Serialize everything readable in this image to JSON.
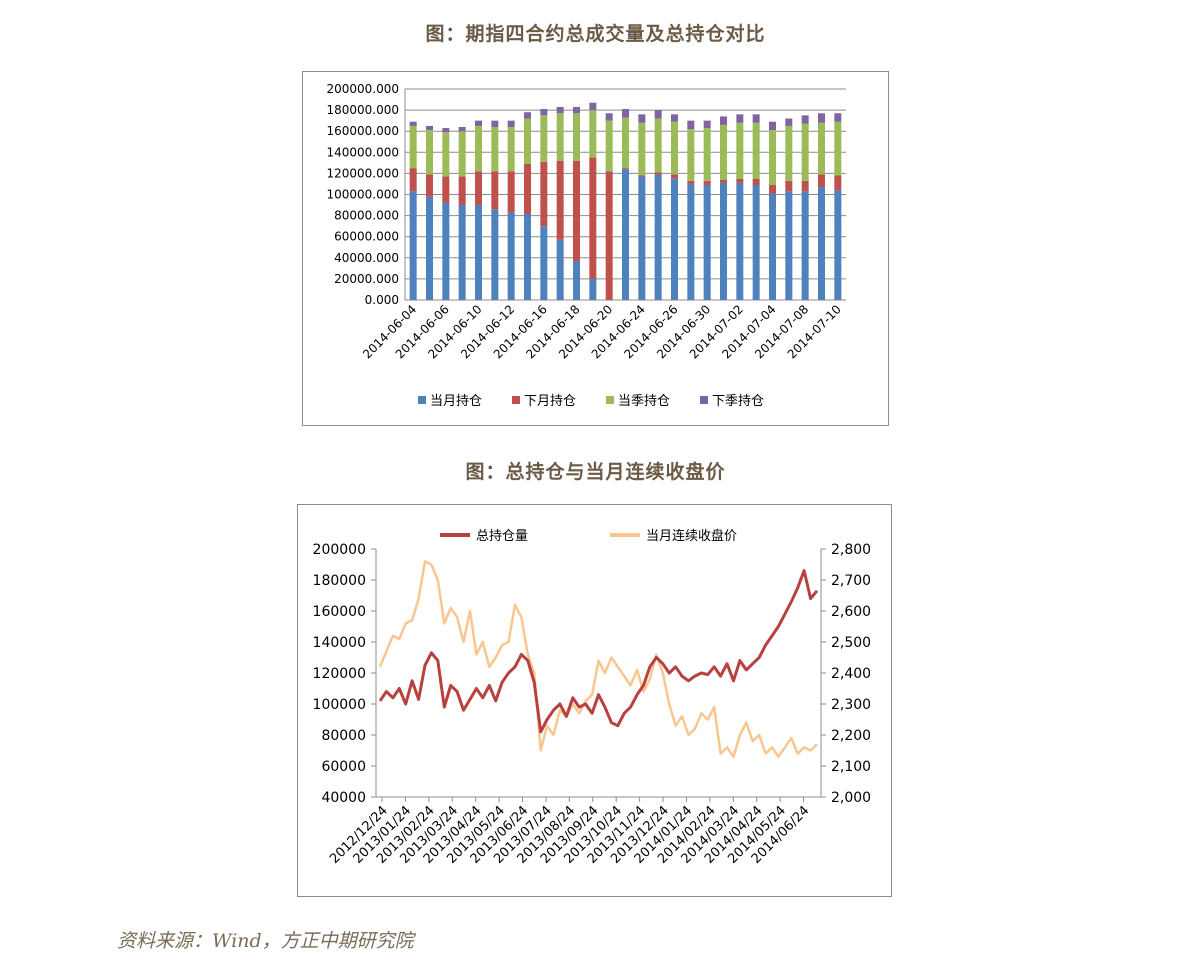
{
  "titles": {
    "chart1": "图：期指四合约总成交量及总持仓对比",
    "chart2": "图：总持仓与当月连续收盘价"
  },
  "source": "资料来源：Wind，方正中期研究院",
  "colors": {
    "blue": "#4f81bd",
    "red": "#c0504d",
    "green": "#9bbb59",
    "purple": "#8064a2",
    "darkred": "#b7413e",
    "peach": "#fac68f"
  },
  "chart_data": [
    {
      "type": "bar",
      "stacked": true,
      "title": "图：期指四合约总成交量及总持仓对比",
      "ylim": [
        0,
        200000
      ],
      "yticks": [
        "0.000",
        "20000.000",
        "40000.000",
        "60000.000",
        "80000.000",
        "100000.000",
        "120000.000",
        "140000.000",
        "160000.000",
        "180000.000",
        "200000.000"
      ],
      "grid": true,
      "legend": "bottom",
      "x_labels": [
        "2014-06-04",
        "2014-06-06",
        "2014-06-10",
        "2014-06-12",
        "2014-06-16",
        "2014-06-18",
        "2014-06-20",
        "2014-06-24",
        "2014-06-26",
        "2014-06-30",
        "2014-07-02",
        "2014-07-04",
        "2014-07-08",
        "2014-07-10"
      ],
      "series": [
        {
          "name": "当月持仓",
          "values": [
            103000,
            98000,
            92000,
            90000,
            90000,
            86000,
            83000,
            82000,
            70000,
            57000,
            37000,
            20000,
            0,
            124000,
            117000,
            119000,
            115000,
            110000,
            109000,
            111000,
            111000,
            109000,
            101000,
            103000,
            103000,
            107000,
            104000
          ]
        },
        {
          "name": "下月持仓",
          "values": [
            22000,
            21000,
            25000,
            27000,
            32000,
            36000,
            39000,
            47000,
            61000,
            75000,
            95000,
            115000,
            122000,
            1000,
            1000,
            2000,
            4000,
            3000,
            4000,
            3000,
            4000,
            6000,
            8000,
            10000,
            10000,
            12000,
            14000
          ]
        },
        {
          "name": "当季持仓",
          "values": [
            40000,
            42000,
            42000,
            43000,
            43000,
            42000,
            42000,
            43000,
            44000,
            45000,
            45000,
            45000,
            48000,
            48000,
            50000,
            51000,
            50000,
            49000,
            50000,
            52000,
            53000,
            53000,
            52000,
            52000,
            54000,
            49000,
            51000
          ]
        },
        {
          "name": "下季持仓",
          "values": [
            4000,
            4000,
            4000,
            4000,
            5000,
            6000,
            6000,
            6000,
            6000,
            6000,
            6000,
            7000,
            7000,
            8000,
            8000,
            8000,
            7000,
            8000,
            7000,
            8000,
            8000,
            8000,
            8000,
            7000,
            8000,
            9000,
            8000
          ]
        }
      ]
    },
    {
      "type": "line",
      "title": "图：总持仓与当月连续收盘价",
      "x_labels": [
        "2012/12/24",
        "2013/01/24",
        "2013/02/24",
        "2013/03/24",
        "2013/04/24",
        "2013/05/24",
        "2013/06/24",
        "2013/07/24",
        "2013/08/24",
        "2013/09/24",
        "2013/10/24",
        "2013/11/24",
        "2013/12/24",
        "2014/01/24",
        "2014/02/24",
        "2014/03/24",
        "2014/04/24",
        "2014/05/24",
        "2014/06/24"
      ],
      "y_left": {
        "ylim": [
          40000,
          200000
        ],
        "ticks": [
          "40000",
          "60000",
          "80000",
          "100000",
          "120000",
          "140000",
          "160000",
          "180000",
          "200000"
        ]
      },
      "y_right": {
        "ylim": [
          2000,
          2800
        ],
        "ticks": [
          "2,000",
          "2,100",
          "2,200",
          "2,300",
          "2,400",
          "2,500",
          "2,600",
          "2,700",
          "2,800"
        ]
      },
      "legend": "top",
      "series": [
        {
          "name": "总持仓量",
          "axis": "left",
          "values": [
            102000,
            108000,
            104000,
            110000,
            100000,
            115000,
            103000,
            125000,
            133000,
            128000,
            98000,
            112000,
            108000,
            96000,
            103000,
            110000,
            104000,
            112000,
            102000,
            114000,
            120000,
            124000,
            132000,
            128000,
            114000,
            82000,
            90000,
            96000,
            100000,
            92000,
            104000,
            98000,
            100000,
            94000,
            106000,
            98000,
            88000,
            86000,
            94000,
            98000,
            106000,
            112000,
            124000,
            130000,
            126000,
            120000,
            124000,
            118000,
            115000,
            118000,
            120000,
            119000,
            124000,
            118000,
            126000,
            115000,
            128000,
            122000,
            126000,
            130000,
            138000,
            144000,
            150000,
            158000,
            166000,
            175000,
            186000,
            168000,
            173000
          ]
        },
        {
          "name": "当月连续收盘价",
          "axis": "right",
          "values": [
            2420,
            2470,
            2520,
            2510,
            2560,
            2570,
            2640,
            2760,
            2750,
            2700,
            2560,
            2610,
            2580,
            2500,
            2600,
            2460,
            2500,
            2420,
            2450,
            2490,
            2500,
            2620,
            2580,
            2460,
            2400,
            2150,
            2230,
            2200,
            2280,
            2260,
            2300,
            2270,
            2310,
            2330,
            2440,
            2400,
            2450,
            2420,
            2390,
            2360,
            2410,
            2340,
            2380,
            2460,
            2400,
            2300,
            2230,
            2260,
            2200,
            2220,
            2270,
            2250,
            2290,
            2140,
            2160,
            2130,
            2200,
            2240,
            2180,
            2200,
            2140,
            2160,
            2130,
            2160,
            2190,
            2140,
            2160,
            2150,
            2170
          ]
        }
      ]
    }
  ]
}
